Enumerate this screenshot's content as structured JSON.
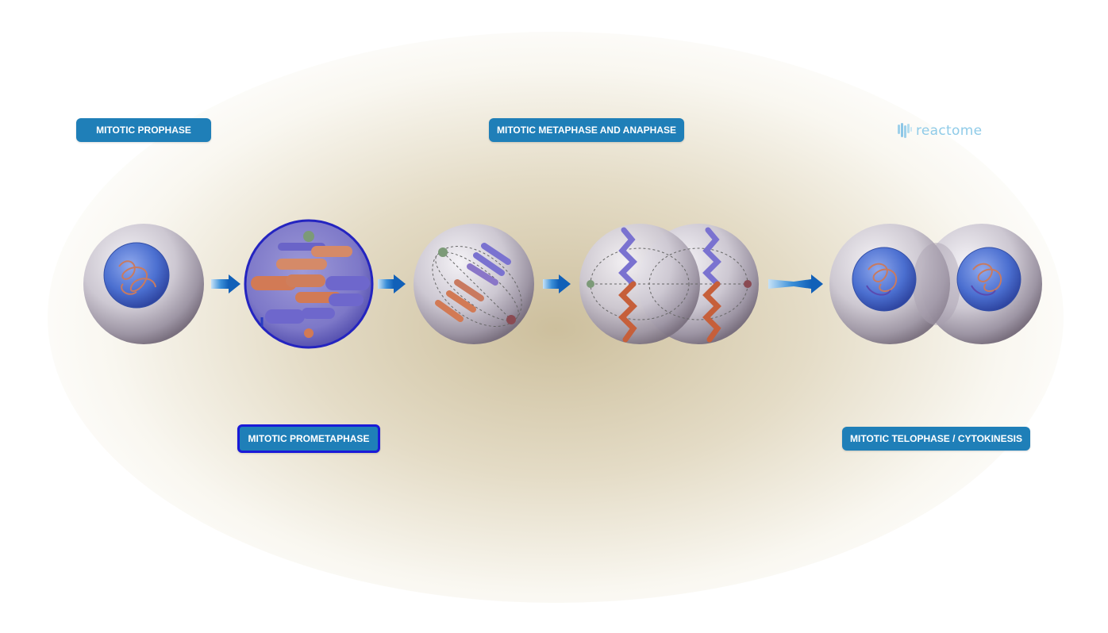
{
  "diagram": {
    "stages": [
      {
        "label": "MITOTIC PROPHASE"
      },
      {
        "label": "MITOTIC PROMETAPHASE",
        "selected": true
      },
      {
        "label": "MITOTIC METAPHASE AND ANAPHASE"
      },
      {
        "label": "MITOTIC TELOPHASE / CYTOKINESIS"
      }
    ],
    "brand": {
      "name": "reactome",
      "icon": "reactome-logo-icon"
    },
    "colors": {
      "label_bg": "#1f7fb8",
      "label_text": "#ffffff",
      "selected_border": "#1a1ad8",
      "nucleus": "#3e64c4",
      "chromosome_orange": "#d27a55",
      "chromosome_purple": "#7a72d0",
      "arrow": "#1e74c6"
    }
  }
}
